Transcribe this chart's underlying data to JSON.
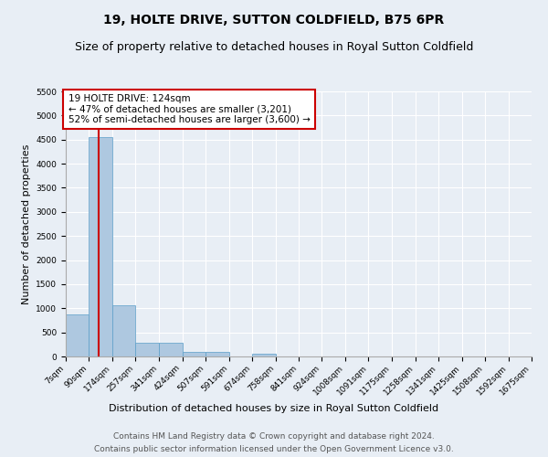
{
  "title": "19, HOLTE DRIVE, SUTTON COLDFIELD, B75 6PR",
  "subtitle": "Size of property relative to detached houses in Royal Sutton Coldfield",
  "xlabel": "Distribution of detached houses by size in Royal Sutton Coldfield",
  "ylabel": "Number of detached properties",
  "footer_line1": "Contains HM Land Registry data © Crown copyright and database right 2024.",
  "footer_line2": "Contains public sector information licensed under the Open Government Licence v3.0.",
  "annotation_title": "19 HOLTE DRIVE: 124sqm",
  "annotation_line1": "← 47% of detached houses are smaller (3,201)",
  "annotation_line2": "52% of semi-detached houses are larger (3,600) →",
  "property_size_sqm": 124,
  "bin_edges": [
    7,
    90,
    174,
    257,
    341,
    424,
    507,
    591,
    674,
    758,
    841,
    924,
    1008,
    1091,
    1175,
    1258,
    1341,
    1425,
    1508,
    1592,
    1675
  ],
  "bin_labels": [
    "7sqm",
    "90sqm",
    "174sqm",
    "257sqm",
    "341sqm",
    "424sqm",
    "507sqm",
    "591sqm",
    "674sqm",
    "758sqm",
    "841sqm",
    "924sqm",
    "1008sqm",
    "1091sqm",
    "1175sqm",
    "1258sqm",
    "1341sqm",
    "1425sqm",
    "1508sqm",
    "1592sqm",
    "1675sqm"
  ],
  "bar_values": [
    880,
    4560,
    1060,
    285,
    285,
    90,
    90,
    0,
    60,
    0,
    0,
    0,
    0,
    0,
    0,
    0,
    0,
    0,
    0,
    0
  ],
  "bar_color": "#aec8e0",
  "bar_edge_color": "#5a9ec8",
  "vline_color": "#cc0000",
  "vline_x": 124,
  "ylim": [
    0,
    5500
  ],
  "yticks": [
    0,
    500,
    1000,
    1500,
    2000,
    2500,
    3000,
    3500,
    4000,
    4500,
    5000,
    5500
  ],
  "background_color": "#e8eef5",
  "plot_bg_color": "#e8eef5",
  "annotation_box_color": "#ffffff",
  "annotation_box_edge": "#cc0000",
  "title_fontsize": 10,
  "subtitle_fontsize": 9,
  "axis_label_fontsize": 8,
  "tick_fontsize": 6.5,
  "annotation_fontsize": 7.5,
  "footer_fontsize": 6.5,
  "ylabel_fontsize": 8
}
